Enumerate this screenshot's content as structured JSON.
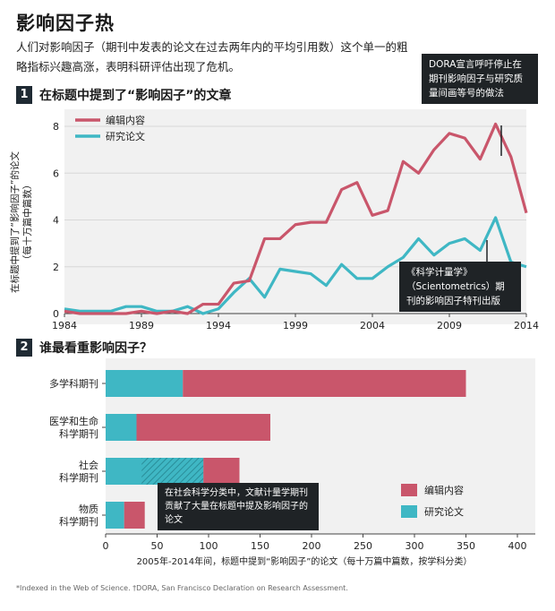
{
  "title": "影响因子热",
  "subtitle": "人们对影响因子（期刊中发表的论文在过去两年内的平均引用数）这个单一的粗略指标兴趣高涨，表明科研评估出现了危机。",
  "colors": {
    "editorial": "#c9566b",
    "research": "#3fb7c4",
    "dark": "#1f2326",
    "panel_bg": "#f1f1f1"
  },
  "section1": {
    "num": "1",
    "heading": "在标题中提到了“影响因子”的文章",
    "ylabel": "在标题中提到了“影响因子”的论文",
    "ylabel2": "（每十万篇中篇数）",
    "note_dora": "DORA宣言呼吁停止在期刊影响因子与研究质量间画等号的做法",
    "note_sciento": "《科学计量学》（Scientometrics）期刊的影响因子特刊出版"
  },
  "section2": {
    "num": "2",
    "heading": "谁最看重影响因子？",
    "annotation": "在社会科学分类中，文献计量学期刊贡献了大量在标题中提及影响因子的论文",
    "xlabel": "2005年-2014年间，标题中提到“影响因子”的论文（每十万篇中篇数，按学科分类）"
  },
  "footnote": "*Indexed in the Web of Science. †DORA, San Francisco Declaration on Research Assessment.",
  "chart_data": [
    {
      "type": "line",
      "x": [
        1984,
        1985,
        1986,
        1987,
        1988,
        1989,
        1990,
        1991,
        1992,
        1993,
        1994,
        1995,
        1996,
        1997,
        1998,
        1999,
        2000,
        2001,
        2002,
        2003,
        2004,
        2005,
        2006,
        2007,
        2008,
        2009,
        2010,
        2011,
        2012,
        2013,
        2014
      ],
      "series": [
        {
          "name": "编辑内容",
          "color": "#c9566b",
          "values": [
            0.1,
            0.0,
            0.0,
            0.0,
            0.0,
            0.1,
            0.0,
            0.1,
            0.0,
            0.4,
            0.4,
            1.3,
            1.4,
            3.2,
            3.2,
            3.8,
            3.9,
            3.9,
            5.3,
            5.6,
            4.2,
            4.4,
            6.5,
            6.0,
            7.0,
            7.7,
            7.5,
            6.6,
            8.1,
            6.7,
            4.3
          ]
        },
        {
          "name": "研究论文",
          "color": "#3fb7c4",
          "values": [
            0.2,
            0.1,
            0.1,
            0.1,
            0.3,
            0.3,
            0.1,
            0.1,
            0.3,
            0.0,
            0.2,
            0.9,
            1.5,
            0.7,
            1.9,
            1.8,
            1.7,
            1.2,
            2.1,
            1.5,
            1.5,
            2.0,
            2.4,
            3.2,
            2.5,
            3.0,
            3.2,
            2.7,
            4.1,
            2.2,
            2.0
          ]
        }
      ],
      "xticks": [
        1984,
        1989,
        1994,
        1999,
        2004,
        2009,
        2014
      ],
      "yticks": [
        0,
        2,
        4,
        6,
        8
      ],
      "ylim": [
        0,
        8.5
      ],
      "xlim": [
        1984,
        2014
      ],
      "legend": "top-left"
    },
    {
      "type": "bar",
      "orientation": "horizontal",
      "stacked": true,
      "categories": [
        "多学科期刊",
        "医学和生命科学期刊",
        "社会科学期刊",
        "物质科学期刊"
      ],
      "series": [
        {
          "name": "研究论文",
          "color": "#3fb7c4",
          "values": [
            75,
            30,
            95,
            18
          ]
        },
        {
          "name": "编辑内容",
          "color": "#c9566b",
          "values": [
            275,
            130,
            35,
            20
          ]
        }
      ],
      "hatched_segment": {
        "category": "社会科学期刊",
        "from": 35,
        "to": 95
      },
      "xticks": [
        0,
        50,
        100,
        150,
        200,
        250,
        300,
        350,
        400
      ],
      "xlim": [
        0,
        400
      ],
      "legend": "bottom-right"
    }
  ]
}
